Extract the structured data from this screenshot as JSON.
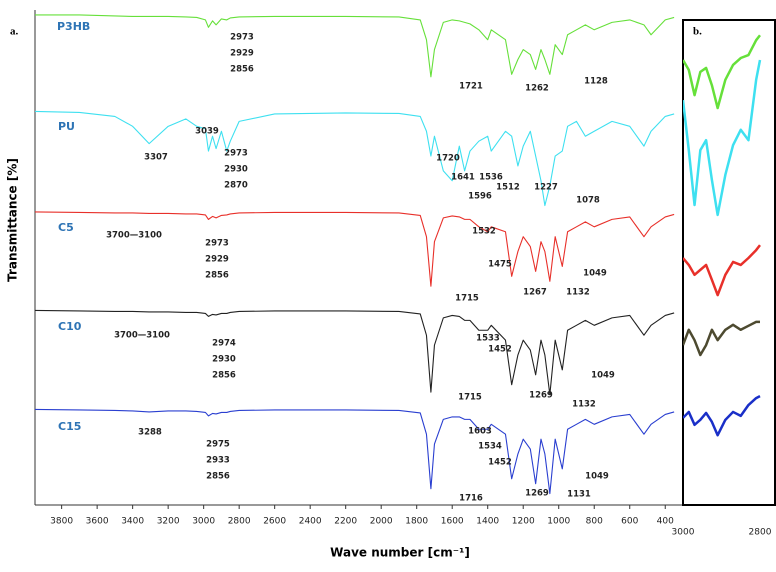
{
  "chart_data": [
    {
      "type": "line",
      "panel_label": "a.",
      "xlabel": "Wave number [cm⁻¹]",
      "ylabel": "Transmittance [%]",
      "xlim": [
        3950,
        300
      ],
      "ylim": [
        0,
        100
      ],
      "xticks": [
        3800,
        3600,
        3400,
        3200,
        3000,
        2800,
        2600,
        2400,
        2200,
        2000,
        1800,
        1600,
        1400,
        1200,
        1000,
        800,
        600,
        400
      ],
      "x": [
        3950,
        3700,
        3500,
        3400,
        3307,
        3200,
        3100,
        3039,
        2990,
        2973,
        2950,
        2930,
        2900,
        2870,
        2850,
        2800,
        2600,
        2200,
        1900,
        1780,
        1745,
        1720,
        1700,
        1650,
        1600,
        1560,
        1530,
        1500,
        1450,
        1400,
        1380,
        1300,
        1265,
        1230,
        1200,
        1160,
        1130,
        1100,
        1078,
        1050,
        1020,
        980,
        950,
        900,
        850,
        800,
        700,
        600,
        520,
        480,
        400,
        350
      ],
      "series": [
        {
          "name": "P3HB",
          "color": "#66e03a",
          "annotations": [
            "2973",
            "2929",
            "2856",
            "1721",
            "1262",
            "1128"
          ],
          "values": [
            99,
            99,
            98.8,
            98.7,
            98.7,
            98.7,
            98.6,
            98.5,
            98,
            96.5,
            97.8,
            97,
            98.2,
            98,
            98.4,
            98.6,
            98.7,
            98.7,
            98.6,
            98,
            94,
            86.5,
            92,
            97.5,
            98,
            97.8,
            97.5,
            97.2,
            96,
            94,
            96,
            94,
            87,
            90,
            92,
            91,
            88,
            92,
            90,
            87,
            93,
            91,
            95,
            96,
            97,
            96,
            97.5,
            98,
            97,
            95,
            98,
            98.5
          ]
        },
        {
          "name": "PU",
          "color": "#3ee0f0",
          "annotations": [
            "3307",
            "3039",
            "2973",
            "2930",
            "2870",
            "1720",
            "1641",
            "1536",
            "1596",
            "1512",
            "1227",
            "1078"
          ],
          "values": [
            79.5,
            79.3,
            78.5,
            76.5,
            73,
            76.5,
            78,
            76.5,
            76,
            71.5,
            74.5,
            72,
            75.5,
            71.5,
            73.5,
            77.5,
            79,
            79.2,
            79.1,
            78.5,
            75.5,
            70.5,
            74.5,
            67.5,
            65.5,
            72.5,
            67.5,
            71.5,
            73.5,
            74.5,
            71.5,
            75.5,
            74.5,
            68.5,
            72.5,
            75.5,
            70.5,
            65.5,
            60.5,
            64.5,
            70.5,
            71.5,
            76.5,
            77.5,
            74.5,
            75.5,
            77.5,
            76.5,
            72.5,
            75.5,
            78.5,
            79
          ]
        },
        {
          "name": "C5",
          "color": "#e8302a",
          "annotations": [
            "3700—3100",
            "2973",
            "2929",
            "2856",
            "1532",
            "1475",
            "1715",
            "1267",
            "1132",
            "1049"
          ],
          "values": [
            59.2,
            59.1,
            59,
            59,
            58.9,
            58.9,
            58.8,
            58.8,
            58.6,
            57.7,
            58.3,
            58,
            58.5,
            58.6,
            58.8,
            59,
            59.1,
            59.1,
            59,
            58.5,
            54.2,
            44.2,
            53.2,
            58,
            58.4,
            58.2,
            57.7,
            57.7,
            56.2,
            55.2,
            56.2,
            55.2,
            46.2,
            51.2,
            54.2,
            52.2,
            47.2,
            53.2,
            51.2,
            45.2,
            54.2,
            48.2,
            55.2,
            56.2,
            57.2,
            56.2,
            57.7,
            58.2,
            54.2,
            56.2,
            58.2,
            58.7
          ]
        },
        {
          "name": "C10",
          "color": "#222222",
          "annotations": [
            "3700—3100",
            "2974",
            "2930",
            "2856",
            "1533",
            "1452",
            "1715",
            "1269",
            "1132",
            "1049"
          ],
          "values": [
            39.3,
            39.2,
            39.1,
            39.1,
            39,
            39,
            38.9,
            38.9,
            38.7,
            38.1,
            38.5,
            38.4,
            38.7,
            38.7,
            38.9,
            39.1,
            39.2,
            39.2,
            39.1,
            38.6,
            34.3,
            22.8,
            32.3,
            37.8,
            38.3,
            38.1,
            37.3,
            37.3,
            35.3,
            35.3,
            36.3,
            33.3,
            24.3,
            30.3,
            33.3,
            31.3,
            26.3,
            33.3,
            30.3,
            22.3,
            33.3,
            27.3,
            35.3,
            36.3,
            37.3,
            36.3,
            37.8,
            38.3,
            34.3,
            36.3,
            38.3,
            38.8
          ]
        },
        {
          "name": "C15",
          "color": "#2a3fd0",
          "annotations": [
            "3288",
            "2975",
            "2933",
            "2856",
            "1603",
            "1534",
            "1452",
            "1716",
            "1269",
            "1131",
            "1049"
          ],
          "values": [
            19.3,
            19.2,
            19.1,
            19,
            18.8,
            19,
            19,
            18.9,
            18.7,
            18,
            18.5,
            18.4,
            18.7,
            18.7,
            18.9,
            19.1,
            19.2,
            19.2,
            19.1,
            18.6,
            14.3,
            3.3,
            12.3,
            17.3,
            17.8,
            17.8,
            17.3,
            17.3,
            15.3,
            15.3,
            16.3,
            14.3,
            5.3,
            10.3,
            13.3,
            11.3,
            4.3,
            13.3,
            10.3,
            2.3,
            13.3,
            7.3,
            15.3,
            16.3,
            17.3,
            16.3,
            17.8,
            18.3,
            14.3,
            16.3,
            18.3,
            18.8
          ]
        }
      ]
    },
    {
      "type": "line",
      "panel_label": "b.",
      "xlim": [
        3000,
        2800
      ],
      "ylim": [
        0,
        100
      ],
      "xticks": [
        3000,
        2800
      ],
      "x": [
        3000,
        2985,
        2970,
        2955,
        2940,
        2925,
        2910,
        2890,
        2870,
        2850,
        2830,
        2810,
        2800
      ],
      "series": [
        {
          "color": "#66e03a",
          "values": [
            89.9,
            87.9,
            82.8,
            87.5,
            88.3,
            84.8,
            80.2,
            85.9,
            88.9,
            90.3,
            90.9,
            93.9,
            94.9
          ]
        },
        {
          "color": "#3ee0f0",
          "values": [
            81.8,
            71.7,
            60.6,
            71.7,
            73.7,
            65.7,
            58.6,
            66.7,
            72.7,
            75.8,
            73.7,
            85.9,
            89.9
          ]
        },
        {
          "color": "#e8302a",
          "values": [
            49.9,
            48.5,
            46.5,
            47.5,
            48.5,
            45.5,
            42.4,
            46.5,
            49.1,
            48.5,
            49.9,
            51.5,
            52.5
          ]
        },
        {
          "color": "#4d4a30",
          "values": [
            32.3,
            35.4,
            33.3,
            30.3,
            32.3,
            35.4,
            33.3,
            35.4,
            36.4,
            35.4,
            36.2,
            37.0,
            37.0
          ]
        },
        {
          "color": "#1a2fc8",
          "values": [
            17.6,
            18.8,
            16.2,
            17.2,
            18.6,
            16.8,
            14.1,
            17.2,
            18.8,
            18.0,
            20.2,
            21.6,
            22.0
          ]
        }
      ]
    }
  ]
}
